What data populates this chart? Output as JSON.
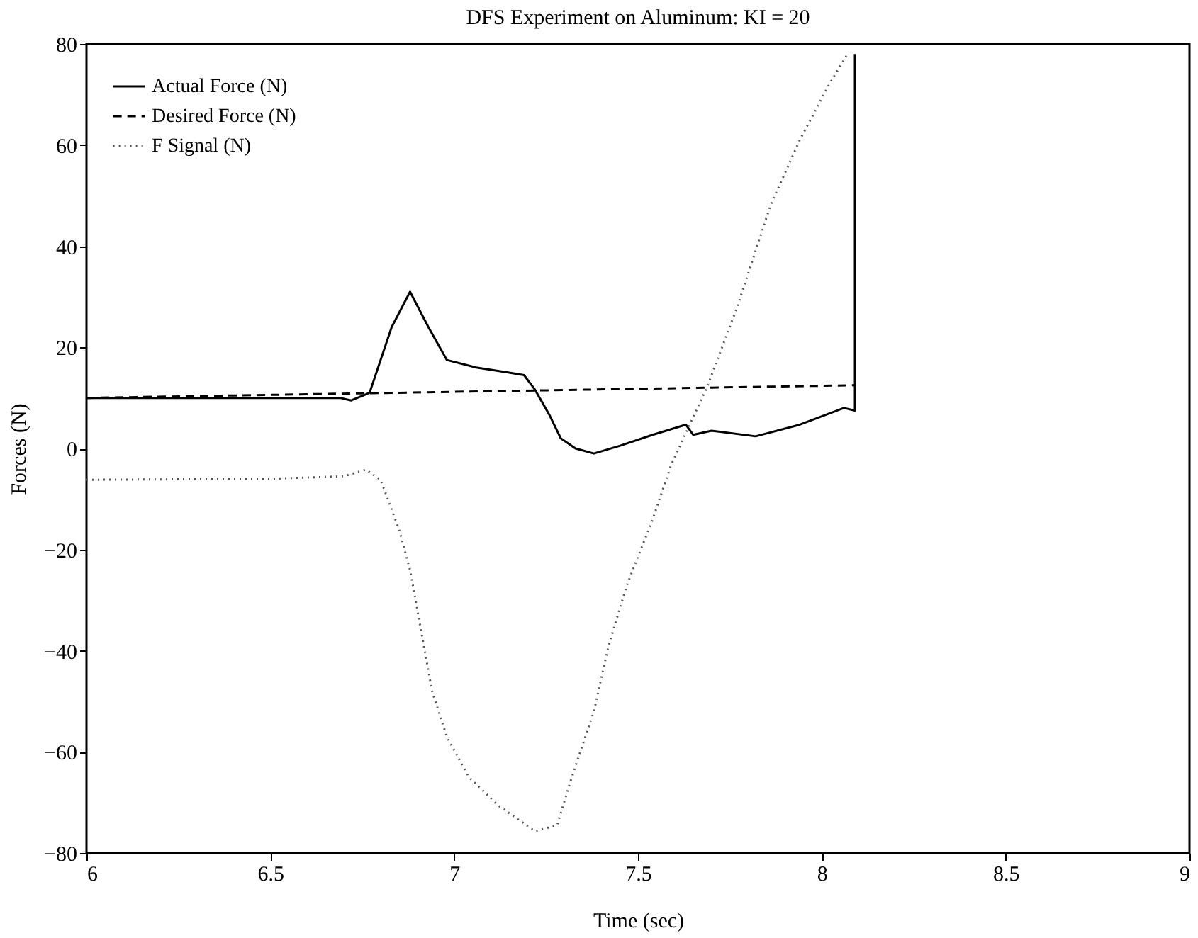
{
  "chart_data": {
    "type": "line",
    "title": "DFS Experiment on Aluminum: KI = 20",
    "xlabel": "Time (sec)",
    "ylabel": "Forces (N)",
    "xlim": [
      6,
      9
    ],
    "xticks": [
      6,
      6.5,
      7,
      7.5,
      8,
      8.5,
      9
    ],
    "ylim": [
      -80,
      80
    ],
    "yticks": [
      -80,
      -60,
      -40,
      -20,
      0,
      20,
      40,
      60,
      80
    ],
    "grid": false,
    "legend": "top left",
    "marker": "none",
    "series": [
      {
        "name": "Actual Force (N)",
        "color": "#000000",
        "line_style": "solid",
        "x": [
          6,
          6.5,
          6.69,
          6.72,
          6.77,
          6.83,
          6.88,
          6.93,
          6.98,
          7.06,
          7.15,
          7.19,
          7.22,
          7.26,
          7.29,
          7.33,
          7.38,
          7.45,
          7.54,
          7.63,
          7.65,
          7.7,
          7.82,
          7.94,
          8.06,
          8.09,
          8.09
        ],
        "values": [
          10,
          10,
          10,
          9.5,
          11,
          24,
          31,
          24,
          17.5,
          16,
          15,
          14.5,
          11.6,
          6.5,
          2,
          0,
          -1,
          0.5,
          2.7,
          4.7,
          2.7,
          3.5,
          2.4,
          4.7,
          8,
          7.5,
          78
        ]
      },
      {
        "name": "Desired Force (N)",
        "color": "#000000",
        "line_style": "dashed",
        "x": [
          6,
          8.09
        ],
        "values": [
          10,
          12.5
        ]
      },
      {
        "name": "F Signal (N)",
        "color": "#555555",
        "line_style": "dotted",
        "x": [
          6,
          6.5,
          6.7,
          6.76,
          6.8,
          6.85,
          6.88,
          6.91,
          6.94,
          6.98,
          7.04,
          7.12,
          7.22,
          7.28,
          7.32,
          7.38,
          7.42,
          7.47,
          7.54,
          7.59,
          7.69,
          7.77,
          7.86,
          7.94,
          8.02,
          8.07
        ],
        "values": [
          -6.2,
          -6,
          -5.5,
          -4.2,
          -6.2,
          -16,
          -24,
          -36,
          -48,
          -57,
          -65,
          -70.6,
          -75.7,
          -74.5,
          -65,
          -52,
          -39,
          -27,
          -14,
          -3.3,
          12.5,
          28,
          48,
          61,
          72,
          78
        ]
      }
    ]
  }
}
